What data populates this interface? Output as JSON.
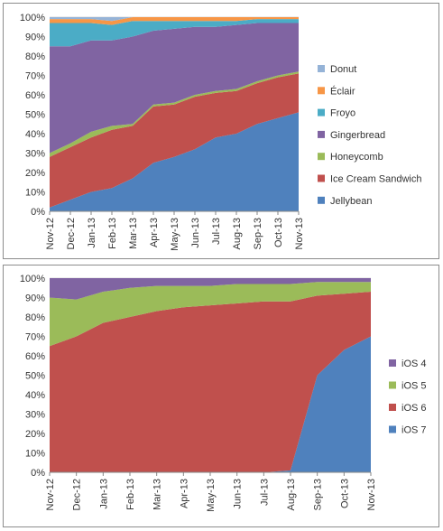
{
  "chart_data": [
    {
      "type": "area",
      "stacked": "percent",
      "categories": [
        "Nov-12",
        "Dec-12",
        "Jan-13",
        "Feb-13",
        "Mar-13",
        "Apr-13",
        "May-13",
        "Jun-13",
        "Jul-13",
        "Aug-13",
        "Sep-13",
        "Oct-13",
        "Nov-13"
      ],
      "y_tick_labels": [
        "0%",
        "10%",
        "20%",
        "30%",
        "40%",
        "50%",
        "60%",
        "70%",
        "80%",
        "90%",
        "100%"
      ],
      "ylim": [
        0,
        100
      ],
      "grid": true,
      "legend_position": "right",
      "series": [
        {
          "name": "Jellybean",
          "color": "#4f81bd",
          "values": [
            2,
            6,
            10,
            12,
            17,
            25,
            28,
            32,
            38,
            40,
            45,
            48,
            51
          ]
        },
        {
          "name": "Ice Cream Sandwich",
          "color": "#c0504d",
          "values": [
            26,
            27,
            28,
            30,
            27,
            29,
            27,
            27,
            23,
            22,
            21,
            21,
            20
          ]
        },
        {
          "name": "Honeycomb",
          "color": "#9bbb59",
          "values": [
            2,
            2,
            3,
            2,
            1,
            1,
            1,
            1,
            1,
            1,
            1,
            1,
            1
          ]
        },
        {
          "name": "Gingerbread",
          "color": "#8064a2",
          "values": [
            55,
            50,
            47,
            44,
            45,
            38,
            38,
            35,
            33,
            33,
            30,
            27,
            25
          ]
        },
        {
          "name": "Froyo",
          "color": "#4bacc6",
          "values": [
            12,
            12,
            9,
            8,
            8,
            5,
            4,
            3,
            3,
            2,
            2,
            2,
            2
          ]
        },
        {
          "name": "Éclair",
          "color": "#f79646",
          "values": [
            2,
            2,
            2,
            2,
            2,
            2,
            2,
            2,
            2,
            2,
            1,
            1,
            1
          ]
        },
        {
          "name": "Donut",
          "color": "#95b3d7",
          "values": [
            1,
            1,
            1,
            2,
            0,
            0,
            0,
            0,
            0,
            0,
            0,
            0,
            0
          ]
        }
      ],
      "legend_entries": [
        "Donut",
        "Éclair",
        "Froyo",
        "Gingerbread",
        "Honeycomb",
        "Ice Cream Sandwich",
        "Jellybean"
      ]
    },
    {
      "type": "area",
      "stacked": "percent",
      "categories": [
        "Nov-12",
        "Dec-12",
        "Jan-13",
        "Feb-13",
        "Mar-13",
        "Apr-13",
        "May-13",
        "Jun-13",
        "Jul-13",
        "Aug-13",
        "Sep-13",
        "Oct-13",
        "Nov-13"
      ],
      "y_tick_labels": [
        "0%",
        "10%",
        "20%",
        "30%",
        "40%",
        "50%",
        "60%",
        "70%",
        "80%",
        "90%",
        "100%"
      ],
      "ylim": [
        0,
        100
      ],
      "grid": true,
      "legend_position": "right",
      "series": [
        {
          "name": "iOS 7",
          "color": "#4f81bd",
          "values": [
            0,
            0,
            0,
            0,
            0,
            0,
            0,
            0,
            0,
            1,
            50,
            63,
            70
          ]
        },
        {
          "name": "iOS 6",
          "color": "#c0504d",
          "values": [
            65,
            70,
            77,
            80,
            83,
            85,
            86,
            87,
            88,
            87,
            41,
            29,
            23
          ]
        },
        {
          "name": "iOS 5",
          "color": "#9bbb59",
          "values": [
            25,
            19,
            16,
            15,
            13,
            11,
            10,
            10,
            9,
            9,
            7,
            6,
            5
          ]
        },
        {
          "name": "iOS 4",
          "color": "#8064a2",
          "values": [
            10,
            11,
            7,
            5,
            4,
            4,
            4,
            3,
            3,
            3,
            2,
            2,
            2
          ]
        }
      ],
      "legend_entries": [
        "iOS 4",
        "iOS 5",
        "iOS 6",
        "iOS 7"
      ]
    }
  ]
}
